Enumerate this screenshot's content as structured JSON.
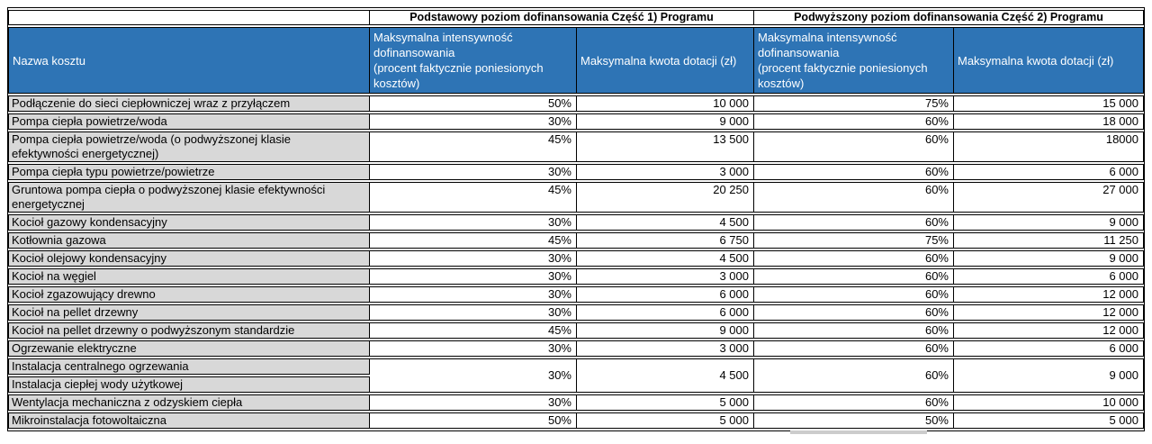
{
  "colors": {
    "header_blue": "#2E74B5",
    "header_text": "#FFFFFF",
    "name_cell_gray": "#D8D8D8",
    "border": "#000000",
    "page_bg": "#FFFFFF"
  },
  "table": {
    "corner_label": "",
    "part_headers": [
      "Podstawowy poziom dofinansowania Część 1) Programu",
      "Podwyższony poziom dofinansowania Część 2) Programu"
    ],
    "col_headers": [
      "Nazwa kosztu",
      "Maksymalna intensywność\ndofinansowania\n(procent faktycznie poniesionych\nkosztów)",
      "Maksymalna kwota dotacji (zł)",
      "Maksymalna intensywność\ndofinansowania\n(procent faktycznie poniesionych\nkosztów)",
      "Maksymalna kwota dotacji (zł)"
    ],
    "rows": [
      {
        "name": "Podłączenie do sieci ciepłowniczej wraz z przyłączem",
        "values": [
          "50%",
          "10 000",
          "75%",
          "15 000"
        ]
      },
      {
        "name": "Pompa ciepła powietrze/woda",
        "values": [
          "30%",
          "9 000",
          "60%",
          "18 000"
        ]
      },
      {
        "name": "Pompa ciepła powietrze/woda (o podwyższonej klasie\nefektywności energetycznej)",
        "values": [
          "45%",
          "13 500",
          "60%",
          "18000"
        ]
      },
      {
        "name": "Pompa ciepła typu powietrze/powietrze",
        "values": [
          "30%",
          "3 000",
          "60%",
          "6 000"
        ]
      },
      {
        "name": "Gruntowa pompa ciepła o podwyższonej klasie efektywności\nenergetycznej",
        "values": [
          "45%",
          "20 250",
          "60%",
          "27 000"
        ]
      },
      {
        "name": "Kocioł gazowy kondensacyjny",
        "values": [
          "30%",
          "4 500",
          "60%",
          "9 000"
        ]
      },
      {
        "name": "Kotłownia gazowa",
        "values": [
          "45%",
          "6 750",
          "75%",
          "11 250"
        ]
      },
      {
        "name": "Kocioł olejowy kondensacyjny",
        "values": [
          "30%",
          "4 500",
          "60%",
          "9 000"
        ]
      },
      {
        "name": "Kocioł na węgiel",
        "values": [
          "30%",
          "3 000",
          "60%",
          "6 000"
        ]
      },
      {
        "name": "Kocioł zgazowujący drewno",
        "values": [
          "30%",
          "6 000",
          "60%",
          "12 000"
        ]
      },
      {
        "name": "Kocioł na pellet drzewny",
        "values": [
          "30%",
          "6 000",
          "60%",
          "12 000"
        ]
      },
      {
        "name": "Kocioł na pellet drzewny o podwyższonym standardzie",
        "values": [
          "45%",
          "9 000",
          "60%",
          "12 000"
        ]
      },
      {
        "name": "Ogrzewanie elektryczne",
        "values": [
          "30%",
          "3 000",
          "60%",
          "6 000"
        ]
      },
      {
        "name": "Instalacja centralnego ogrzewania",
        "values": [
          "30%",
          "4 500",
          "60%",
          "9 000"
        ],
        "rowspan": 2
      },
      {
        "name": "Instalacja ciepłej wody użytkowej",
        "values": null
      },
      {
        "name": "Wentylacja mechaniczna z odzyskiem ciepła",
        "values": [
          "30%",
          "5 000",
          "60%",
          "10 000"
        ]
      },
      {
        "name": "Mikroinstalacja fotowoltaiczna",
        "values": [
          "50%",
          "5 000",
          "50%",
          "5 000"
        ]
      }
    ]
  }
}
